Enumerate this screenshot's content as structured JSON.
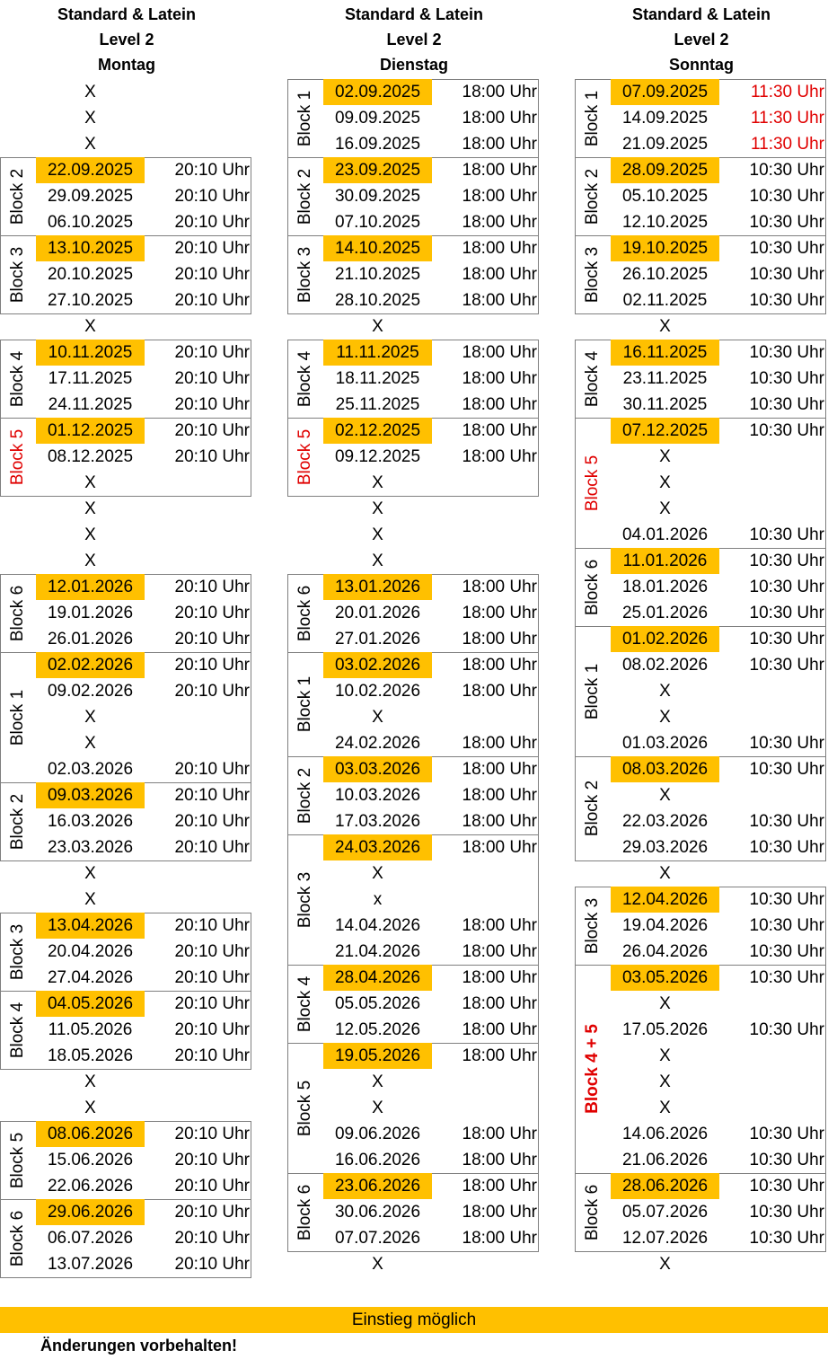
{
  "columns": [
    {
      "id": "montag",
      "title": "Standard & Latein",
      "level": "Level 2",
      "day": "Montag",
      "rows": [
        {
          "x": "X"
        },
        {
          "x": "X"
        },
        {
          "x": "X"
        },
        {
          "date": "22.09.2025",
          "time": "20:10 Uhr",
          "hl": true
        },
        {
          "date": "29.09.2025",
          "time": "20:10 Uhr"
        },
        {
          "date": "06.10.2025",
          "time": "20:10 Uhr"
        },
        {
          "date": "13.10.2025",
          "time": "20:10 Uhr",
          "hl": true
        },
        {
          "date": "20.10.2025",
          "time": "20:10 Uhr"
        },
        {
          "date": "27.10.2025",
          "time": "20:10 Uhr"
        },
        {
          "x": "X"
        },
        {
          "date": "10.11.2025",
          "time": "20:10 Uhr",
          "hl": true
        },
        {
          "date": "17.11.2025",
          "time": "20:10 Uhr"
        },
        {
          "date": "24.11.2025",
          "time": "20:10 Uhr"
        },
        {
          "date": "01.12.2025",
          "time": "20:10 Uhr",
          "hl": true
        },
        {
          "date": "08.12.2025",
          "time": "20:10 Uhr"
        },
        {
          "x": "X"
        },
        {
          "x": "X"
        },
        {
          "x": "X"
        },
        {
          "x": "X"
        },
        {
          "date": "12.01.2026",
          "time": "20:10 Uhr",
          "hl": true
        },
        {
          "date": "19.01.2026",
          "time": "20:10 Uhr"
        },
        {
          "date": "26.01.2026",
          "time": "20:10 Uhr"
        },
        {
          "date": "02.02.2026",
          "time": "20:10 Uhr",
          "hl": true
        },
        {
          "date": "09.02.2026",
          "time": "20:10 Uhr"
        },
        {
          "x": "X"
        },
        {
          "x": "X"
        },
        {
          "date": "02.03.2026",
          "time": "20:10 Uhr"
        },
        {
          "date": "09.03.2026",
          "time": "20:10 Uhr",
          "hl": true
        },
        {
          "date": "16.03.2026",
          "time": "20:10 Uhr"
        },
        {
          "date": "23.03.2026",
          "time": "20:10 Uhr"
        },
        {
          "x": "X"
        },
        {
          "x": "X"
        },
        {
          "date": "13.04.2026",
          "time": "20:10 Uhr",
          "hl": true
        },
        {
          "date": "20.04.2026",
          "time": "20:10 Uhr"
        },
        {
          "date": "27.04.2026",
          "time": "20:10 Uhr"
        },
        {
          "date": "04.05.2026",
          "time": "20:10 Uhr",
          "hl": true
        },
        {
          "date": "11.05.2026",
          "time": "20:10 Uhr"
        },
        {
          "date": "18.05.2026",
          "time": "20:10 Uhr"
        },
        {
          "x": "X"
        },
        {
          "x": "X"
        },
        {
          "date": "08.06.2026",
          "time": "20:10 Uhr",
          "hl": true
        },
        {
          "date": "15.06.2026",
          "time": "20:10 Uhr"
        },
        {
          "date": "22.06.2026",
          "time": "20:10 Uhr"
        },
        {
          "date": "29.06.2026",
          "time": "20:10 Uhr",
          "hl": true
        },
        {
          "date": "06.07.2026",
          "time": "20:10 Uhr"
        },
        {
          "date": "13.07.2026",
          "time": "20:10 Uhr"
        }
      ],
      "blocks": [
        {
          "label": "Block 2",
          "start": 3,
          "end": 5
        },
        {
          "label": "Block 3",
          "start": 6,
          "end": 8
        },
        {
          "label": "Block 4",
          "start": 10,
          "end": 12
        },
        {
          "label": "Block 5",
          "start": 13,
          "end": 15,
          "red": true
        },
        {
          "label": "Block 6",
          "start": 19,
          "end": 21
        },
        {
          "label": "Block 1",
          "start": 22,
          "end": 26
        },
        {
          "label": "Block 2",
          "start": 27,
          "end": 29
        },
        {
          "label": "Block 3",
          "start": 32,
          "end": 34
        },
        {
          "label": "Block 4",
          "start": 35,
          "end": 37
        },
        {
          "label": "Block 5",
          "start": 40,
          "end": 42
        },
        {
          "label": "Block 6",
          "start": 43,
          "end": 45
        }
      ]
    },
    {
      "id": "dienstag",
      "title": "Standard & Latein",
      "level": "Level 2",
      "day": "Dienstag",
      "rows": [
        {
          "date": "02.09.2025",
          "time": "18:00 Uhr",
          "hl": true
        },
        {
          "date": "09.09.2025",
          "time": "18:00 Uhr"
        },
        {
          "date": "16.09.2025",
          "time": "18:00 Uhr"
        },
        {
          "date": "23.09.2025",
          "time": "18:00 Uhr",
          "hl": true
        },
        {
          "date": "30.09.2025",
          "time": "18:00 Uhr"
        },
        {
          "date": "07.10.2025",
          "time": "18:00 Uhr"
        },
        {
          "date": "14.10.2025",
          "time": "18:00 Uhr",
          "hl": true
        },
        {
          "date": "21.10.2025",
          "time": "18:00 Uhr"
        },
        {
          "date": "28.10.2025",
          "time": "18:00 Uhr"
        },
        {
          "x": "X"
        },
        {
          "date": "11.11.2025",
          "time": "18:00 Uhr",
          "hl": true
        },
        {
          "date": "18.11.2025",
          "time": "18:00 Uhr"
        },
        {
          "date": "25.11.2025",
          "time": "18:00 Uhr"
        },
        {
          "date": "02.12.2025",
          "time": "18:00 Uhr",
          "hl": true
        },
        {
          "date": "09.12.2025",
          "time": "18:00 Uhr"
        },
        {
          "x": "X"
        },
        {
          "x": "X"
        },
        {
          "x": "X"
        },
        {
          "x": "X"
        },
        {
          "date": "13.01.2026",
          "time": "18:00 Uhr",
          "hl": true
        },
        {
          "date": "20.01.2026",
          "time": "18:00 Uhr"
        },
        {
          "date": "27.01.2026",
          "time": "18:00 Uhr"
        },
        {
          "date": "03.02.2026",
          "time": "18:00 Uhr",
          "hl": true
        },
        {
          "date": "10.02.2026",
          "time": "18:00 Uhr"
        },
        {
          "x": "X"
        },
        {
          "date": "24.02.2026",
          "time": "18:00 Uhr"
        },
        {
          "date": "03.03.2026",
          "time": "18:00 Uhr",
          "hl": true
        },
        {
          "date": "10.03.2026",
          "time": "18:00 Uhr"
        },
        {
          "date": "17.03.2026",
          "time": "18:00 Uhr"
        },
        {
          "date": "24.03.2026",
          "time": "18:00 Uhr",
          "hl": true
        },
        {
          "x": "X"
        },
        {
          "x": "x"
        },
        {
          "date": "14.04.2026",
          "time": "18:00 Uhr"
        },
        {
          "date": "21.04.2026",
          "time": "18:00 Uhr"
        },
        {
          "date": "28.04.2026",
          "time": "18:00 Uhr",
          "hl": true
        },
        {
          "date": "05.05.2026",
          "time": "18:00 Uhr"
        },
        {
          "date": "12.05.2026",
          "time": "18:00 Uhr"
        },
        {
          "date": "19.05.2026",
          "time": "18:00 Uhr",
          "hl": true
        },
        {
          "x": "X"
        },
        {
          "x": "X"
        },
        {
          "date": "09.06.2026",
          "time": "18:00 Uhr"
        },
        {
          "date": "16.06.2026",
          "time": "18:00 Uhr"
        },
        {
          "date": "23.06.2026",
          "time": "18:00 Uhr",
          "hl": true
        },
        {
          "date": "30.06.2026",
          "time": "18:00 Uhr"
        },
        {
          "date": "07.07.2026",
          "time": "18:00 Uhr"
        },
        {
          "x": "X"
        }
      ],
      "blocks": [
        {
          "label": "Block 1",
          "start": 0,
          "end": 2
        },
        {
          "label": "Block 2",
          "start": 3,
          "end": 5
        },
        {
          "label": "Block 3",
          "start": 6,
          "end": 8
        },
        {
          "label": "Block 4",
          "start": 10,
          "end": 12
        },
        {
          "label": "Block 5",
          "start": 13,
          "end": 15,
          "red": true
        },
        {
          "label": "Block 6",
          "start": 19,
          "end": 21
        },
        {
          "label": "Block 1",
          "start": 22,
          "end": 25
        },
        {
          "label": "Block 2",
          "start": 26,
          "end": 28
        },
        {
          "label": "Block 3",
          "start": 29,
          "end": 33
        },
        {
          "label": "Block 4",
          "start": 34,
          "end": 36
        },
        {
          "label": "Block 5",
          "start": 37,
          "end": 41
        },
        {
          "label": "Block 6",
          "start": 42,
          "end": 44
        }
      ]
    },
    {
      "id": "sonntag",
      "title": "Standard & Latein",
      "level": "Level 2",
      "day": "Sonntag",
      "rows": [
        {
          "date": "07.09.2025",
          "time": "11:30 Uhr",
          "hl": true,
          "red": true
        },
        {
          "date": "14.09.2025",
          "time": "11:30 Uhr",
          "red": true
        },
        {
          "date": "21.09.2025",
          "time": "11:30 Uhr",
          "red": true
        },
        {
          "date": "28.09.2025",
          "time": "10:30 Uhr",
          "hl": true
        },
        {
          "date": "05.10.2025",
          "time": "10:30 Uhr"
        },
        {
          "date": "12.10.2025",
          "time": "10:30 Uhr"
        },
        {
          "date": "19.10.2025",
          "time": "10:30 Uhr",
          "hl": true
        },
        {
          "date": "26.10.2025",
          "time": "10:30 Uhr"
        },
        {
          "date": "02.11.2025",
          "time": "10:30 Uhr"
        },
        {
          "x": "X"
        },
        {
          "date": "16.11.2025",
          "time": "10:30 Uhr",
          "hl": true
        },
        {
          "date": "23.11.2025",
          "time": "10:30 Uhr"
        },
        {
          "date": "30.11.2025",
          "time": "10:30 Uhr"
        },
        {
          "date": "07.12.2025",
          "time": "10:30 Uhr",
          "hl": true
        },
        {
          "x": "X"
        },
        {
          "x": "X"
        },
        {
          "x": "X"
        },
        {
          "date": "04.01.2026",
          "time": "10:30 Uhr"
        },
        {
          "date": "11.01.2026",
          "time": "10:30 Uhr",
          "hl": true
        },
        {
          "date": "18.01.2026",
          "time": "10:30 Uhr"
        },
        {
          "date": "25.01.2026",
          "time": "10:30 Uhr"
        },
        {
          "date": "01.02.2026",
          "time": "10:30 Uhr",
          "hl": true
        },
        {
          "date": "08.02.2026",
          "time": "10:30 Uhr"
        },
        {
          "x": "X"
        },
        {
          "x": "X"
        },
        {
          "date": "01.03.2026",
          "time": "10:30 Uhr"
        },
        {
          "date": "08.03.2026",
          "time": "10:30 Uhr",
          "hl": true
        },
        {
          "x": "X"
        },
        {
          "date": "22.03.2026",
          "time": "10:30 Uhr"
        },
        {
          "date": "29.03.2026",
          "time": "10:30 Uhr"
        },
        {
          "x": "X"
        },
        {
          "date": "12.04.2026",
          "time": "10:30 Uhr",
          "hl": true
        },
        {
          "date": "19.04.2026",
          "time": "10:30 Uhr"
        },
        {
          "date": "26.04.2026",
          "time": "10:30 Uhr"
        },
        {
          "date": "03.05.2026",
          "time": "10:30 Uhr",
          "hl": true
        },
        {
          "x": "X"
        },
        {
          "date": "17.05.2026",
          "time": "10:30 Uhr"
        },
        {
          "x": "X"
        },
        {
          "x": "X"
        },
        {
          "x": "X"
        },
        {
          "date": "14.06.2026",
          "time": "10:30 Uhr"
        },
        {
          "date": "21.06.2026",
          "time": "10:30 Uhr"
        },
        {
          "date": "28.06.2026",
          "time": "10:30 Uhr",
          "hl": true
        },
        {
          "date": "05.07.2026",
          "time": "10:30 Uhr"
        },
        {
          "date": "12.07.2026",
          "time": "10:30 Uhr"
        },
        {
          "x": "X"
        }
      ],
      "blocks": [
        {
          "label": "Block 1",
          "start": 0,
          "end": 2
        },
        {
          "label": "Block 2",
          "start": 3,
          "end": 5
        },
        {
          "label": "Block 3",
          "start": 6,
          "end": 8
        },
        {
          "label": "Block 4",
          "start": 10,
          "end": 12
        },
        {
          "label": "Block 5",
          "start": 13,
          "end": 17,
          "red": true
        },
        {
          "label": "Block 6",
          "start": 18,
          "end": 20
        },
        {
          "label": "Block 1",
          "start": 21,
          "end": 25
        },
        {
          "label": "Block 2",
          "start": 26,
          "end": 29
        },
        {
          "label": "Block 3",
          "start": 31,
          "end": 33
        },
        {
          "label": "Block 4 + 5",
          "start": 34,
          "end": 41,
          "red": true,
          "bold": true
        },
        {
          "label": "Block 6",
          "start": 42,
          "end": 44
        }
      ]
    }
  ],
  "legend": {
    "label": "Einstieg möglich"
  },
  "footer": {
    "note": "Änderungen vorbehalten!"
  },
  "colors": {
    "highlight": "#FFC000",
    "red": "#E00000",
    "border": "#7f7f7f"
  }
}
